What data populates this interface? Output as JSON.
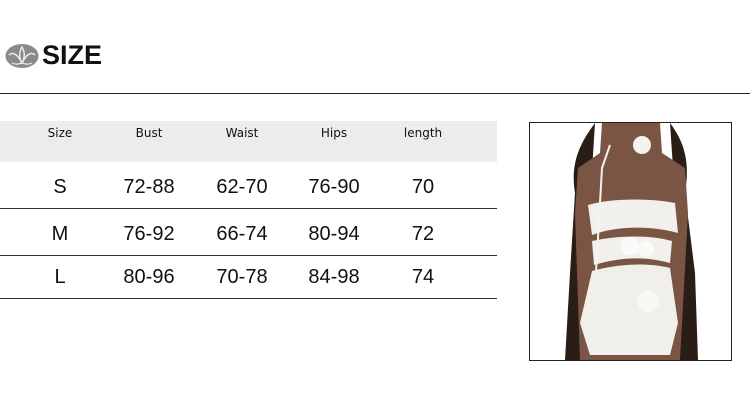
{
  "header": {
    "title": "SIZE",
    "logo_icon": "lotus-logo-icon"
  },
  "table": {
    "columns": [
      "Size",
      "Bust",
      "Waist",
      "Hips",
      "length"
    ],
    "rows": [
      [
        "S",
        "72-88",
        "62-70",
        "76-90",
        "70"
      ],
      [
        "M",
        "76-92",
        "66-74",
        "80-94",
        "72"
      ],
      [
        "L",
        "80-96",
        "70-78",
        "84-98",
        "74"
      ]
    ]
  },
  "colors": {
    "header_band": "#ececec",
    "text": "#111111"
  }
}
